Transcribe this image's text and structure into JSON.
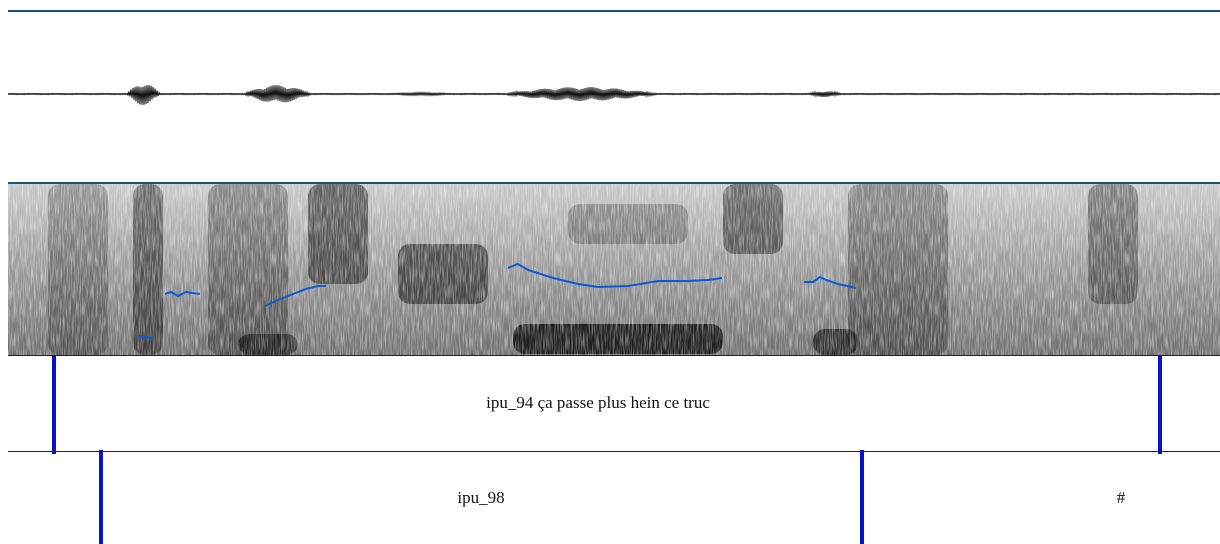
{
  "tiers": [
    {
      "intervals": [
        {
          "label": "ipu_94 ça passe plus hein ce truc"
        }
      ]
    },
    {
      "intervals": [
        {
          "label": "ipu_98"
        },
        {
          "label": "#"
        }
      ]
    }
  ],
  "colors": {
    "boundary": "#0a12c8",
    "pitch": "#0a5bd8",
    "rule": "#1f4f7a",
    "waveform": "#111111"
  }
}
